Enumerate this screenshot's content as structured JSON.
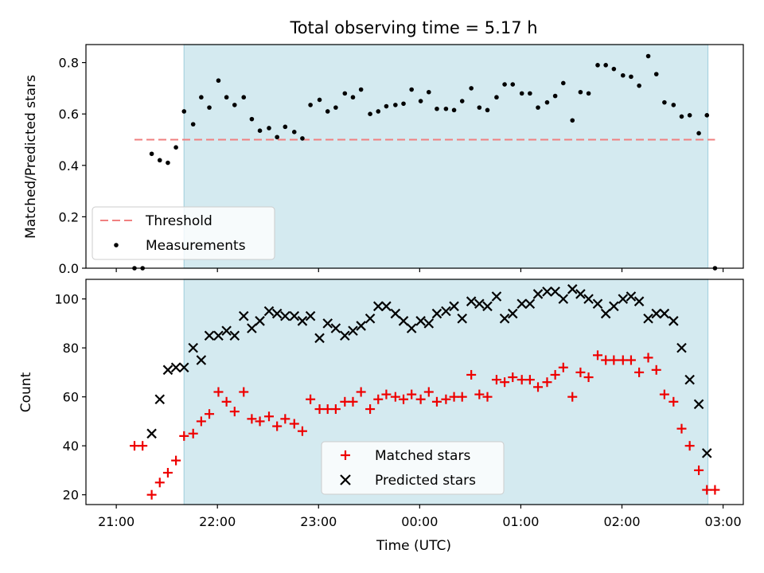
{
  "figure": {
    "title": "Total observing time = 5.17 h",
    "xlabel": "Time (UTC)",
    "xticks": [
      "21:00",
      "22:00",
      "23:00",
      "00:00",
      "01:00",
      "02:00",
      "03:00"
    ],
    "shade_color": "#d4eaf0",
    "shade_edge": "#a9d3e0"
  },
  "chart_data": [
    {
      "type": "scatter",
      "x_unit": "hours since 21:00 UTC",
      "ylabel": "Matched/Predicted stars",
      "xlim": [
        -0.3,
        6.2
      ],
      "ylim": [
        0.0,
        0.87
      ],
      "yticks": [
        "0.0",
        "0.2",
        "0.4",
        "0.6",
        "0.8"
      ],
      "ytick_values": [
        0.0,
        0.2,
        0.4,
        0.6,
        0.8
      ],
      "shaded_range": [
        0.67,
        5.85
      ],
      "legend": {
        "placement": "lower-left",
        "entries": [
          "Threshold",
          "Measurements"
        ]
      },
      "threshold": {
        "name": "Threshold",
        "value": 0.5,
        "x_range": [
          0.18,
          5.92
        ],
        "color": "#f08080"
      },
      "series": [
        {
          "name": "Measurements",
          "color": "#000000",
          "marker": "dot",
          "x": [
            0.18,
            0.26,
            0.35,
            0.43,
            0.51,
            0.59,
            0.67,
            0.76,
            0.84,
            0.92,
            1.01,
            1.09,
            1.17,
            1.26,
            1.34,
            1.42,
            1.51,
            1.59,
            1.67,
            1.76,
            1.84,
            1.92,
            2.01,
            2.09,
            2.17,
            2.26,
            2.34,
            2.42,
            2.51,
            2.59,
            2.67,
            2.76,
            2.84,
            2.92,
            3.01,
            3.09,
            3.17,
            3.26,
            3.34,
            3.42,
            3.51,
            3.59,
            3.67,
            3.76,
            3.84,
            3.92,
            4.01,
            4.09,
            4.17,
            4.26,
            4.34,
            4.42,
            4.51,
            4.59,
            4.67,
            4.76,
            4.84,
            4.92,
            5.01,
            5.09,
            5.17,
            5.26,
            5.34,
            5.42,
            5.51,
            5.59,
            5.67,
            5.76,
            5.84,
            5.92
          ],
          "y": [
            0.0,
            0.0,
            0.445,
            0.42,
            0.41,
            0.47,
            0.61,
            0.56,
            0.665,
            0.625,
            0.73,
            0.665,
            0.635,
            0.665,
            0.58,
            0.535,
            0.545,
            0.51,
            0.55,
            0.53,
            0.505,
            0.635,
            0.655,
            0.61,
            0.625,
            0.68,
            0.665,
            0.695,
            0.6,
            0.61,
            0.63,
            0.635,
            0.64,
            0.695,
            0.65,
            0.685,
            0.62,
            0.62,
            0.615,
            0.65,
            0.7,
            0.625,
            0.615,
            0.665,
            0.715,
            0.715,
            0.68,
            0.68,
            0.625,
            0.645,
            0.67,
            0.72,
            0.575,
            0.685,
            0.68,
            0.79,
            0.79,
            0.775,
            0.75,
            0.745,
            0.71,
            0.825,
            0.755,
            0.645,
            0.635,
            0.59,
            0.595,
            0.525,
            0.595,
            0.0
          ]
        }
      ]
    },
    {
      "type": "scatter",
      "x_unit": "hours since 21:00 UTC",
      "ylabel": "Count",
      "xlim": [
        -0.3,
        6.2
      ],
      "ylim": [
        16,
        108
      ],
      "yticks": [
        "20",
        "40",
        "60",
        "80",
        "100"
      ],
      "ytick_values": [
        20,
        40,
        60,
        80,
        100
      ],
      "shaded_range": [
        0.67,
        5.85
      ],
      "legend": {
        "placement": "lower-center",
        "entries": [
          "Matched stars",
          "Predicted stars"
        ]
      },
      "series": [
        {
          "name": "Matched stars",
          "color": "#ee0000",
          "marker": "plus",
          "x": [
            0.18,
            0.26,
            0.35,
            0.43,
            0.51,
            0.59,
            0.67,
            0.76,
            0.84,
            0.92,
            1.01,
            1.09,
            1.17,
            1.26,
            1.34,
            1.42,
            1.51,
            1.59,
            1.67,
            1.76,
            1.84,
            1.92,
            2.01,
            2.09,
            2.17,
            2.26,
            2.34,
            2.42,
            2.51,
            2.59,
            2.67,
            2.76,
            2.84,
            2.92,
            3.01,
            3.09,
            3.17,
            3.26,
            3.34,
            3.42,
            3.51,
            3.59,
            3.67,
            3.76,
            3.84,
            3.92,
            4.01,
            4.09,
            4.17,
            4.26,
            4.34,
            4.42,
            4.51,
            4.59,
            4.67,
            4.76,
            4.84,
            4.92,
            5.01,
            5.09,
            5.17,
            5.26,
            5.34,
            5.42,
            5.51,
            5.59,
            5.67,
            5.76,
            5.84,
            5.92
          ],
          "y": [
            40,
            40,
            20,
            25,
            29,
            34,
            44,
            45,
            50,
            53,
            62,
            58,
            54,
            62,
            51,
            50,
            52,
            48,
            51,
            49,
            46,
            59,
            55,
            55,
            55,
            58,
            58,
            62,
            55,
            59,
            61,
            60,
            59,
            61,
            59,
            62,
            58,
            59,
            60,
            60,
            69,
            61,
            60,
            67,
            66,
            68,
            67,
            67,
            64,
            66,
            69,
            72,
            60,
            70,
            68,
            77,
            75,
            75,
            75,
            75,
            70,
            76,
            71,
            61,
            58,
            47,
            40,
            30,
            22,
            22
          ]
        },
        {
          "name": "Predicted stars",
          "color": "#000000",
          "marker": "x",
          "x": [
            0.35,
            0.43,
            0.51,
            0.59,
            0.67,
            0.76,
            0.84,
            0.92,
            1.01,
            1.09,
            1.17,
            1.26,
            1.34,
            1.42,
            1.51,
            1.59,
            1.67,
            1.76,
            1.84,
            1.92,
            2.01,
            2.09,
            2.17,
            2.26,
            2.34,
            2.42,
            2.51,
            2.59,
            2.67,
            2.76,
            2.84,
            2.92,
            3.01,
            3.09,
            3.17,
            3.26,
            3.34,
            3.42,
            3.51,
            3.59,
            3.67,
            3.76,
            3.84,
            3.92,
            4.01,
            4.09,
            4.17,
            4.26,
            4.34,
            4.42,
            4.51,
            4.59,
            4.67,
            4.76,
            4.84,
            4.92,
            5.01,
            5.09,
            5.17,
            5.26,
            5.34,
            5.42,
            5.51,
            5.59,
            5.67,
            5.76,
            5.84
          ],
          "y": [
            45,
            59,
            71,
            72,
            72,
            80,
            75,
            85,
            85,
            87,
            85,
            93,
            88,
            91,
            95,
            94,
            93,
            93,
            91,
            93,
            84,
            90,
            88,
            85,
            87,
            89,
            92,
            97,
            97,
            94,
            91,
            88,
            91,
            90,
            94,
            95,
            97,
            92,
            99,
            98,
            97,
            101,
            92,
            94,
            98,
            98,
            102,
            103,
            103,
            100,
            104,
            102,
            100,
            98,
            94,
            97,
            100,
            101,
            99,
            92,
            94,
            94,
            91,
            80,
            67,
            57,
            37
          ]
        }
      ]
    }
  ]
}
